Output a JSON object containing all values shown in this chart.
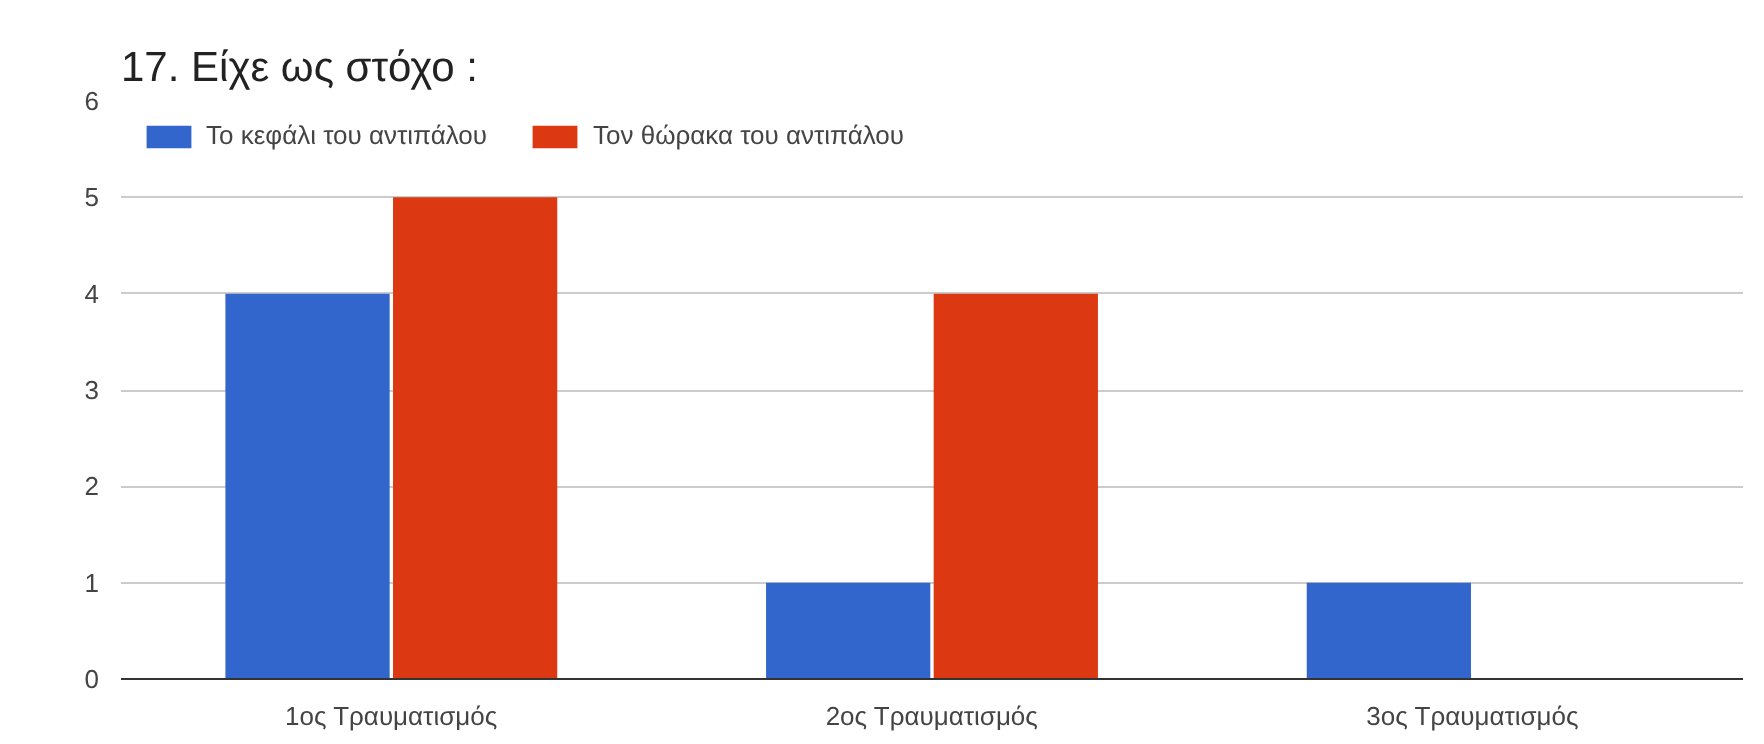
{
  "chart_data": {
    "type": "bar",
    "title": "17. Είχε ως στόχο :",
    "categories": [
      "1ος Τραυματισμός",
      "2ος Τραυματισμός",
      "3ος Τραυματισμός"
    ],
    "series": [
      {
        "name": "Το κεφάλι του αντιπάλου",
        "color": "#3366cc",
        "values": [
          4,
          1,
          1
        ]
      },
      {
        "name": "Τον θώρακα του αντιπάλου",
        "color": "#dc3912",
        "values": [
          5,
          4,
          0
        ]
      }
    ],
    "ylim": [
      0,
      6
    ],
    "yticks": [
      0,
      1,
      2,
      3,
      4,
      5,
      6
    ],
    "grid": "y",
    "legend": "top left"
  }
}
